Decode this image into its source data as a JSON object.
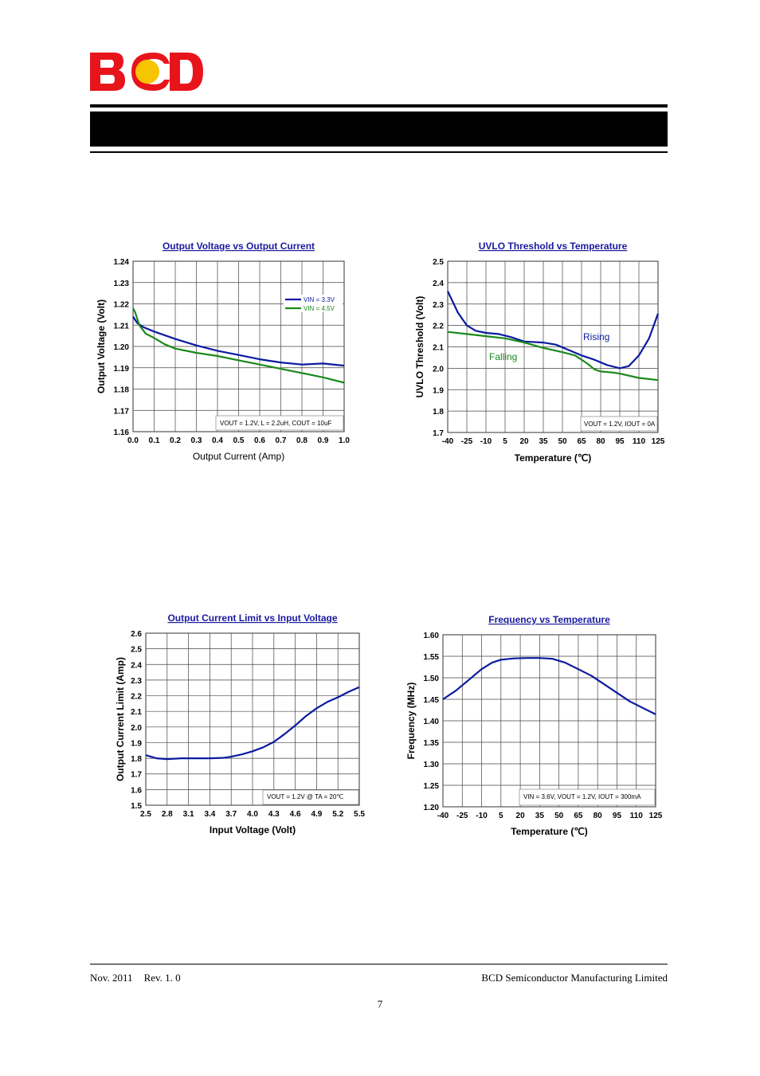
{
  "header": {
    "logo_text": "BCD",
    "logo_colors": {
      "letters": "#e8141c",
      "dot": "#f7c400"
    }
  },
  "footer": {
    "date": "Nov. 2011",
    "revision": "Rev. 1. 0",
    "company": "BCD Semiconductor Manufacturing Limited",
    "page_number": "7"
  },
  "colors": {
    "blue": "#0a1aa0",
    "green": "#1a8a1a",
    "title": "#1a1aa0",
    "grid": "#444444"
  },
  "chart_data": [
    {
      "type": "line",
      "title": "Output Voltage vs Output Current",
      "xlabel": "Output Current (Amp)",
      "ylabel": "Output Voltage (Volt)",
      "xlim": [
        0,
        1
      ],
      "ylim": [
        1.16,
        1.24
      ],
      "xticks": [
        "0.0",
        "0.1",
        "0.2",
        "0.3",
        "0.4",
        "0.5",
        "0.6",
        "0.7",
        "0.8",
        "0.9",
        "1.0"
      ],
      "yticks": [
        "1.16",
        "1.17",
        "1.18",
        "1.19",
        "1.20",
        "1.21",
        "1.22",
        "1.23",
        "1.24"
      ],
      "grid": true,
      "legend": "top-right",
      "condition": "VOUT = 1.2V, L = 2.2uH, COUT = 10uF",
      "series": [
        {
          "name": "VIN = 3.3V",
          "color": "#0a1aa0",
          "x": [
            0,
            0.02,
            0.05,
            0.1,
            0.2,
            0.3,
            0.4,
            0.5,
            0.6,
            0.7,
            0.8,
            0.9,
            1.0
          ],
          "y": [
            1.214,
            1.211,
            1.209,
            1.207,
            1.2035,
            1.2005,
            1.198,
            1.196,
            1.194,
            1.1925,
            1.1915,
            1.192,
            1.191
          ]
        },
        {
          "name": "VIN = 4.5V",
          "color": "#1a8a1a",
          "x": [
            0,
            0.01,
            0.03,
            0.06,
            0.1,
            0.15,
            0.2,
            0.3,
            0.4,
            0.5,
            0.6,
            0.7,
            0.8,
            0.9,
            1.0
          ],
          "y": [
            1.218,
            1.216,
            1.21,
            1.206,
            1.204,
            1.201,
            1.199,
            1.197,
            1.1955,
            1.1935,
            1.1915,
            1.1895,
            1.1875,
            1.1855,
            1.183
          ]
        }
      ]
    },
    {
      "type": "line",
      "title": "UVLO Threshold vs Temperature",
      "xlabel": "Temperature (℃)",
      "ylabel": "UVLO Threshold (Volt)",
      "xlim": [
        -40,
        125
      ],
      "ylim": [
        1.7,
        2.5
      ],
      "xticks": [
        "-40",
        "-25",
        "-10",
        "5",
        "20",
        "35",
        "50",
        "65",
        "80",
        "95",
        "110",
        "125"
      ],
      "yticks": [
        "1.7",
        "1.8",
        "1.9",
        "2.0",
        "2.1",
        "2.2",
        "2.3",
        "2.4",
        "2.5"
      ],
      "grid": true,
      "condition": "VOUT = 1.2V, IOUT = 0A",
      "annotations": [
        "Rising",
        "Falling"
      ],
      "series": [
        {
          "name": "Rising",
          "color": "#0a1aa0",
          "x": [
            -40,
            -32,
            -25,
            -18,
            -10,
            0,
            10,
            20,
            35,
            45,
            55,
            65,
            75,
            85,
            95,
            102,
            110,
            118,
            125
          ],
          "y": [
            2.36,
            2.26,
            2.2,
            2.175,
            2.165,
            2.16,
            2.145,
            2.125,
            2.12,
            2.11,
            2.085,
            2.06,
            2.04,
            2.015,
            2.0,
            2.01,
            2.06,
            2.14,
            2.255
          ]
        },
        {
          "name": "Falling",
          "color": "#1a8a1a",
          "x": [
            -40,
            -25,
            -10,
            5,
            20,
            35,
            50,
            60,
            70,
            75,
            80,
            90,
            95,
            110,
            125
          ],
          "y": [
            2.17,
            2.16,
            2.15,
            2.14,
            2.12,
            2.095,
            2.075,
            2.06,
            2.02,
            1.995,
            1.985,
            1.98,
            1.975,
            1.955,
            1.945
          ]
        }
      ]
    },
    {
      "type": "line",
      "title": "Output Current Limit vs Input Voltage",
      "xlabel": "Input Voltage (Volt)",
      "ylabel": "Output Current Limit (Amp)",
      "xlim": [
        2.5,
        5.5
      ],
      "ylim": [
        1.5,
        2.6
      ],
      "xticks": [
        "2.5",
        "2.8",
        "3.1",
        "3.4",
        "3.7",
        "4.0",
        "4.3",
        "4.6",
        "4.9",
        "5.2",
        "5.5"
      ],
      "yticks": [
        "1.5",
        "1.6",
        "1.7",
        "1.8",
        "1.9",
        "2.0",
        "2.1",
        "2.2",
        "2.3",
        "2.4",
        "2.5",
        "2.6"
      ],
      "grid": true,
      "condition": "VOUT = 1.2V @ TA = 20℃",
      "series": [
        {
          "name": "",
          "color": "#0a1aa0",
          "x": [
            2.5,
            2.65,
            2.8,
            3.0,
            3.2,
            3.4,
            3.6,
            3.7,
            3.85,
            4.0,
            4.15,
            4.3,
            4.45,
            4.6,
            4.75,
            4.9,
            5.05,
            5.2,
            5.35,
            5.5
          ],
          "y": [
            1.82,
            1.8,
            1.795,
            1.8,
            1.8,
            1.8,
            1.803,
            1.81,
            1.825,
            1.845,
            1.87,
            1.905,
            1.955,
            2.01,
            2.07,
            2.12,
            2.16,
            2.19,
            2.225,
            2.255
          ]
        }
      ]
    },
    {
      "type": "line",
      "title": "Frequency vs Temperature",
      "xlabel": "Temperature (℃)",
      "ylabel": "Frequency (MHz)",
      "xlim": [
        -40,
        125
      ],
      "ylim": [
        1.2,
        1.6
      ],
      "xticks": [
        "-40",
        "-25",
        "-10",
        "5",
        "20",
        "35",
        "50",
        "65",
        "80",
        "95",
        "110",
        "125"
      ],
      "yticks": [
        "1.20",
        "1.25",
        "1.30",
        "1.35",
        "1.40",
        "1.45",
        "1.50",
        "1.55",
        "1.60"
      ],
      "grid": true,
      "condition": "VIN = 3.6V, VOUT = 1.2V, IOUT = 300mA",
      "series": [
        {
          "name": "",
          "color": "#0a1aa0",
          "x": [
            -40,
            -30,
            -20,
            -10,
            -2,
            5,
            15,
            25,
            35,
            45,
            55,
            65,
            75,
            85,
            95,
            105,
            115,
            125
          ],
          "y": [
            1.45,
            1.47,
            1.495,
            1.52,
            1.535,
            1.542,
            1.545,
            1.546,
            1.546,
            1.544,
            1.535,
            1.52,
            1.505,
            1.485,
            1.465,
            1.445,
            1.43,
            1.415
          ]
        }
      ]
    }
  ]
}
